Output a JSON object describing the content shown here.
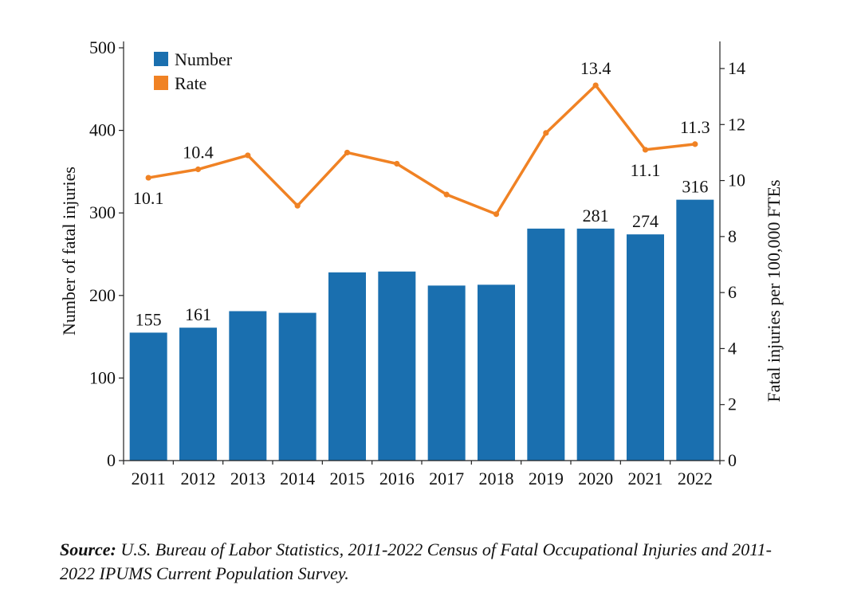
{
  "chart_data": {
    "type": "bar",
    "categories": [
      "2011",
      "2012",
      "2013",
      "2014",
      "2015",
      "2016",
      "2017",
      "2018",
      "2019",
      "2020",
      "2021",
      "2022"
    ],
    "series": [
      {
        "name": "Number",
        "type": "bar",
        "axis": "left",
        "color": "#1a6faf",
        "values": [
          155,
          161,
          181,
          179,
          228,
          229,
          212,
          213,
          281,
          281,
          274,
          316
        ]
      },
      {
        "name": "Rate",
        "type": "line",
        "axis": "right",
        "color": "#f08224",
        "values": [
          10.1,
          10.4,
          10.9,
          9.1,
          11.0,
          10.6,
          9.5,
          8.8,
          11.7,
          13.4,
          11.1,
          11.3
        ]
      }
    ],
    "data_labels": {
      "Number": [
        {
          "category": "2011",
          "text": "155"
        },
        {
          "category": "2012",
          "text": "161"
        },
        {
          "category": "2020",
          "text": "281"
        },
        {
          "category": "2021",
          "text": "274"
        },
        {
          "category": "2022",
          "text": "316"
        }
      ],
      "Rate": [
        {
          "category": "2011",
          "text": "10.1",
          "position": "below"
        },
        {
          "category": "2012",
          "text": "10.4",
          "position": "above"
        },
        {
          "category": "2020",
          "text": "13.4",
          "position": "above"
        },
        {
          "category": "2021",
          "text": "11.1",
          "position": "below"
        },
        {
          "category": "2022",
          "text": "11.3",
          "position": "above"
        }
      ]
    },
    "ylabel": "Number of fatal injuries",
    "ylabel_right": "Fatal injuries per 100,000 FTEs",
    "ylim": [
      0,
      500
    ],
    "ylim_right": [
      0,
      15
    ],
    "yticks": [
      0,
      100,
      200,
      300,
      400,
      500
    ],
    "yticks_right": [
      0,
      2,
      4,
      6,
      8,
      10,
      12,
      14
    ],
    "grid": false,
    "legend": "top-left"
  },
  "source": {
    "prefix": "Source:",
    "text": "U.S. Bureau of Labor Statistics, 2011-2022 Census of Fatal Occupational Injuries and 2011-2022 IPUMS Current Population Survey."
  }
}
